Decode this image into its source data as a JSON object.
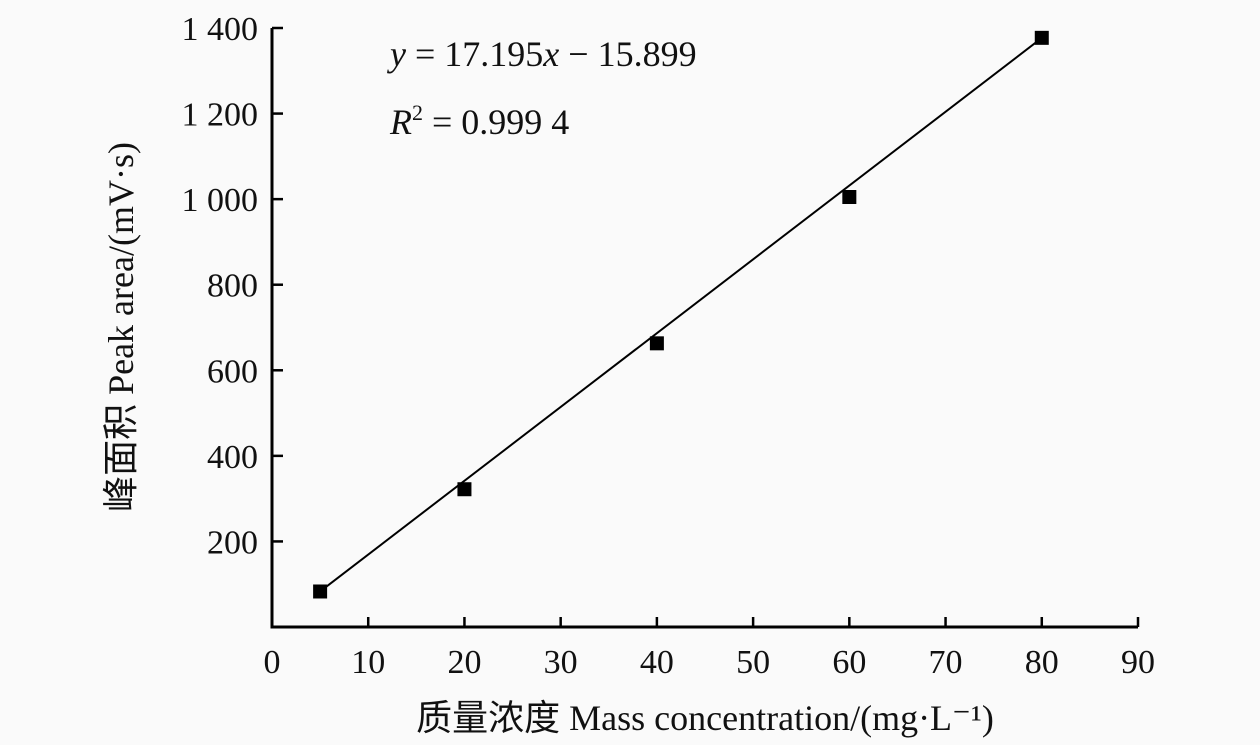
{
  "chart_data": {
    "type": "scatter",
    "title": "",
    "xlabel": "质量浓度 Mass concentration/(mg·L⁻¹)",
    "ylabel": "峰面积 Peak area/(mV·s)",
    "xlim": [
      0,
      90
    ],
    "ylim": [
      0,
      1400
    ],
    "xticks": [
      0,
      10,
      20,
      30,
      40,
      50,
      60,
      70,
      80,
      90
    ],
    "xtick_labels": [
      "0",
      "10",
      "20",
      "30",
      "40",
      "50",
      "60",
      "70",
      "80",
      "90"
    ],
    "yticks": [
      200,
      400,
      600,
      800,
      1000,
      1200,
      1400
    ],
    "ytick_labels": [
      "200",
      "400",
      "600",
      "800",
      "1 000",
      "1 200",
      "1 400"
    ],
    "grid": false,
    "series": [
      {
        "marker": "square",
        "color": "#000000",
        "x": [
          5,
          20,
          40,
          60,
          80
        ],
        "y": [
          83,
          322,
          663,
          1005,
          1377
        ]
      }
    ],
    "fit_line": {
      "slope": 17.195,
      "intercept": -15.899,
      "x_range": [
        5,
        80
      ],
      "color": "#000000"
    },
    "annotations": {
      "equation_var": "y",
      "equation_rest": " = 17.195",
      "equation_x": "x",
      "equation_tail": " − 15.899",
      "r2_var": "R",
      "r2_sup": "2",
      "r2_rest": " = 0.999 4"
    }
  }
}
